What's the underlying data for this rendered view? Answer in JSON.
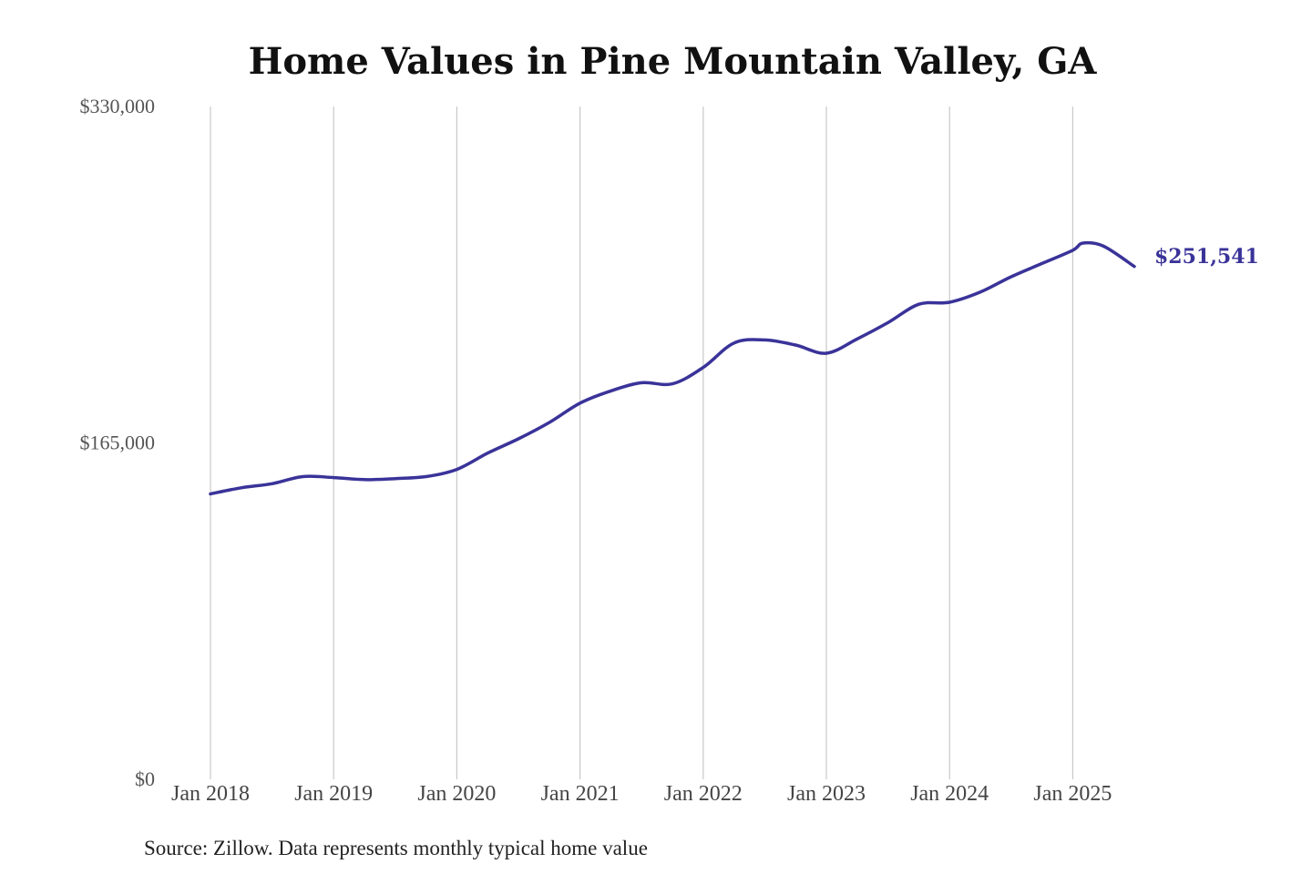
{
  "chart_data": {
    "type": "line",
    "title": "Home Values in Pine Mountain Valley, GA",
    "ylim": [
      0,
      330000
    ],
    "yticks": [
      {
        "value": 0,
        "label": "$0"
      },
      {
        "value": 165000,
        "label": "$165,000"
      },
      {
        "value": 330000,
        "label": "$330,000"
      }
    ],
    "xlim": [
      "2018-01",
      "2025-07"
    ],
    "xticks": [
      {
        "date": "2018-01",
        "label": "Jan 2018"
      },
      {
        "date": "2019-01",
        "label": "Jan 2019"
      },
      {
        "date": "2020-01",
        "label": "Jan 2020"
      },
      {
        "date": "2021-01",
        "label": "Jan 2021"
      },
      {
        "date": "2022-01",
        "label": "Jan 2022"
      },
      {
        "date": "2023-01",
        "label": "Jan 2023"
      },
      {
        "date": "2024-01",
        "label": "Jan 2024"
      },
      {
        "date": "2025-01",
        "label": "Jan 2025"
      }
    ],
    "grid": "vertical lines at each year",
    "series": [
      {
        "color": "#3a3399",
        "x": [
          "2018-01",
          "2018-04",
          "2018-07",
          "2018-10",
          "2019-01",
          "2019-04",
          "2019-07",
          "2019-10",
          "2020-01",
          "2020-04",
          "2020-07",
          "2020-10",
          "2021-01",
          "2021-04",
          "2021-07",
          "2021-10",
          "2022-01",
          "2022-04",
          "2022-07",
          "2022-10",
          "2023-01",
          "2023-04",
          "2023-07",
          "2023-10",
          "2024-01",
          "2024-04",
          "2024-07",
          "2024-10",
          "2025-01",
          "2025-02",
          "2025-04",
          "2025-07"
        ],
        "y": [
          140000,
          143000,
          145000,
          148500,
          148000,
          147000,
          147500,
          148500,
          152000,
          160000,
          167000,
          175000,
          184500,
          190500,
          194500,
          194000,
          202000,
          214000,
          215500,
          213000,
          209000,
          216000,
          224000,
          233000,
          234000,
          239000,
          246500,
          253000,
          259500,
          263000,
          261500,
          251541
        ]
      }
    ],
    "end_label": "$251,541"
  },
  "source": "Source: Zillow. Data represents monthly typical home value"
}
